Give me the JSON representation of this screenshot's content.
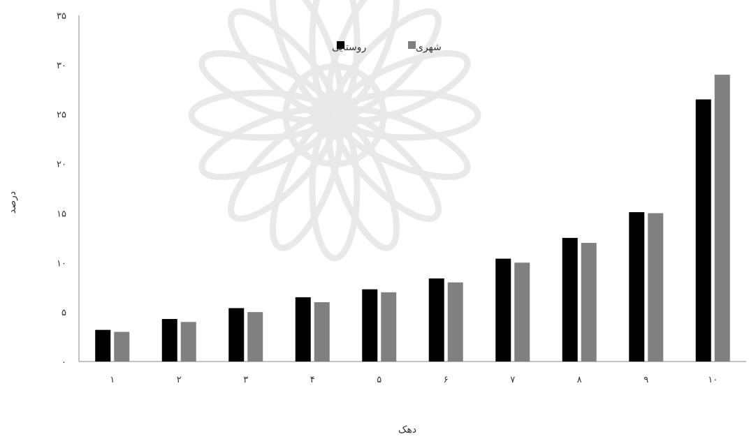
{
  "chart_data": {
    "type": "bar",
    "title": "",
    "xlabel": "دهک",
    "ylabel": "درصد",
    "categories": [
      "۱",
      "۲",
      "۳",
      "۴",
      "۵",
      "۶",
      "۷",
      "۸",
      "۹",
      "۱۰"
    ],
    "ylim": [
      0,
      35
    ],
    "yticks": [
      0,
      5,
      10,
      15,
      20,
      25,
      30,
      35
    ],
    "ytick_labels": [
      "۰",
      "۵",
      "۱۰",
      "۱۵",
      "۲۰",
      "۲۵",
      "۳۰",
      "۳۵"
    ],
    "grid": false,
    "legend_position": "top-center",
    "series": [
      {
        "name": "روستایی",
        "color": "#000000",
        "values": [
          3.2,
          4.3,
          5.4,
          6.5,
          7.3,
          8.4,
          10.4,
          12.5,
          15.1,
          26.5
        ]
      },
      {
        "name": "شهری",
        "color": "#808080",
        "values": [
          3.0,
          4.0,
          5.0,
          6.0,
          7.0,
          8.0,
          10.0,
          12.0,
          15.0,
          29.0
        ]
      }
    ]
  }
}
